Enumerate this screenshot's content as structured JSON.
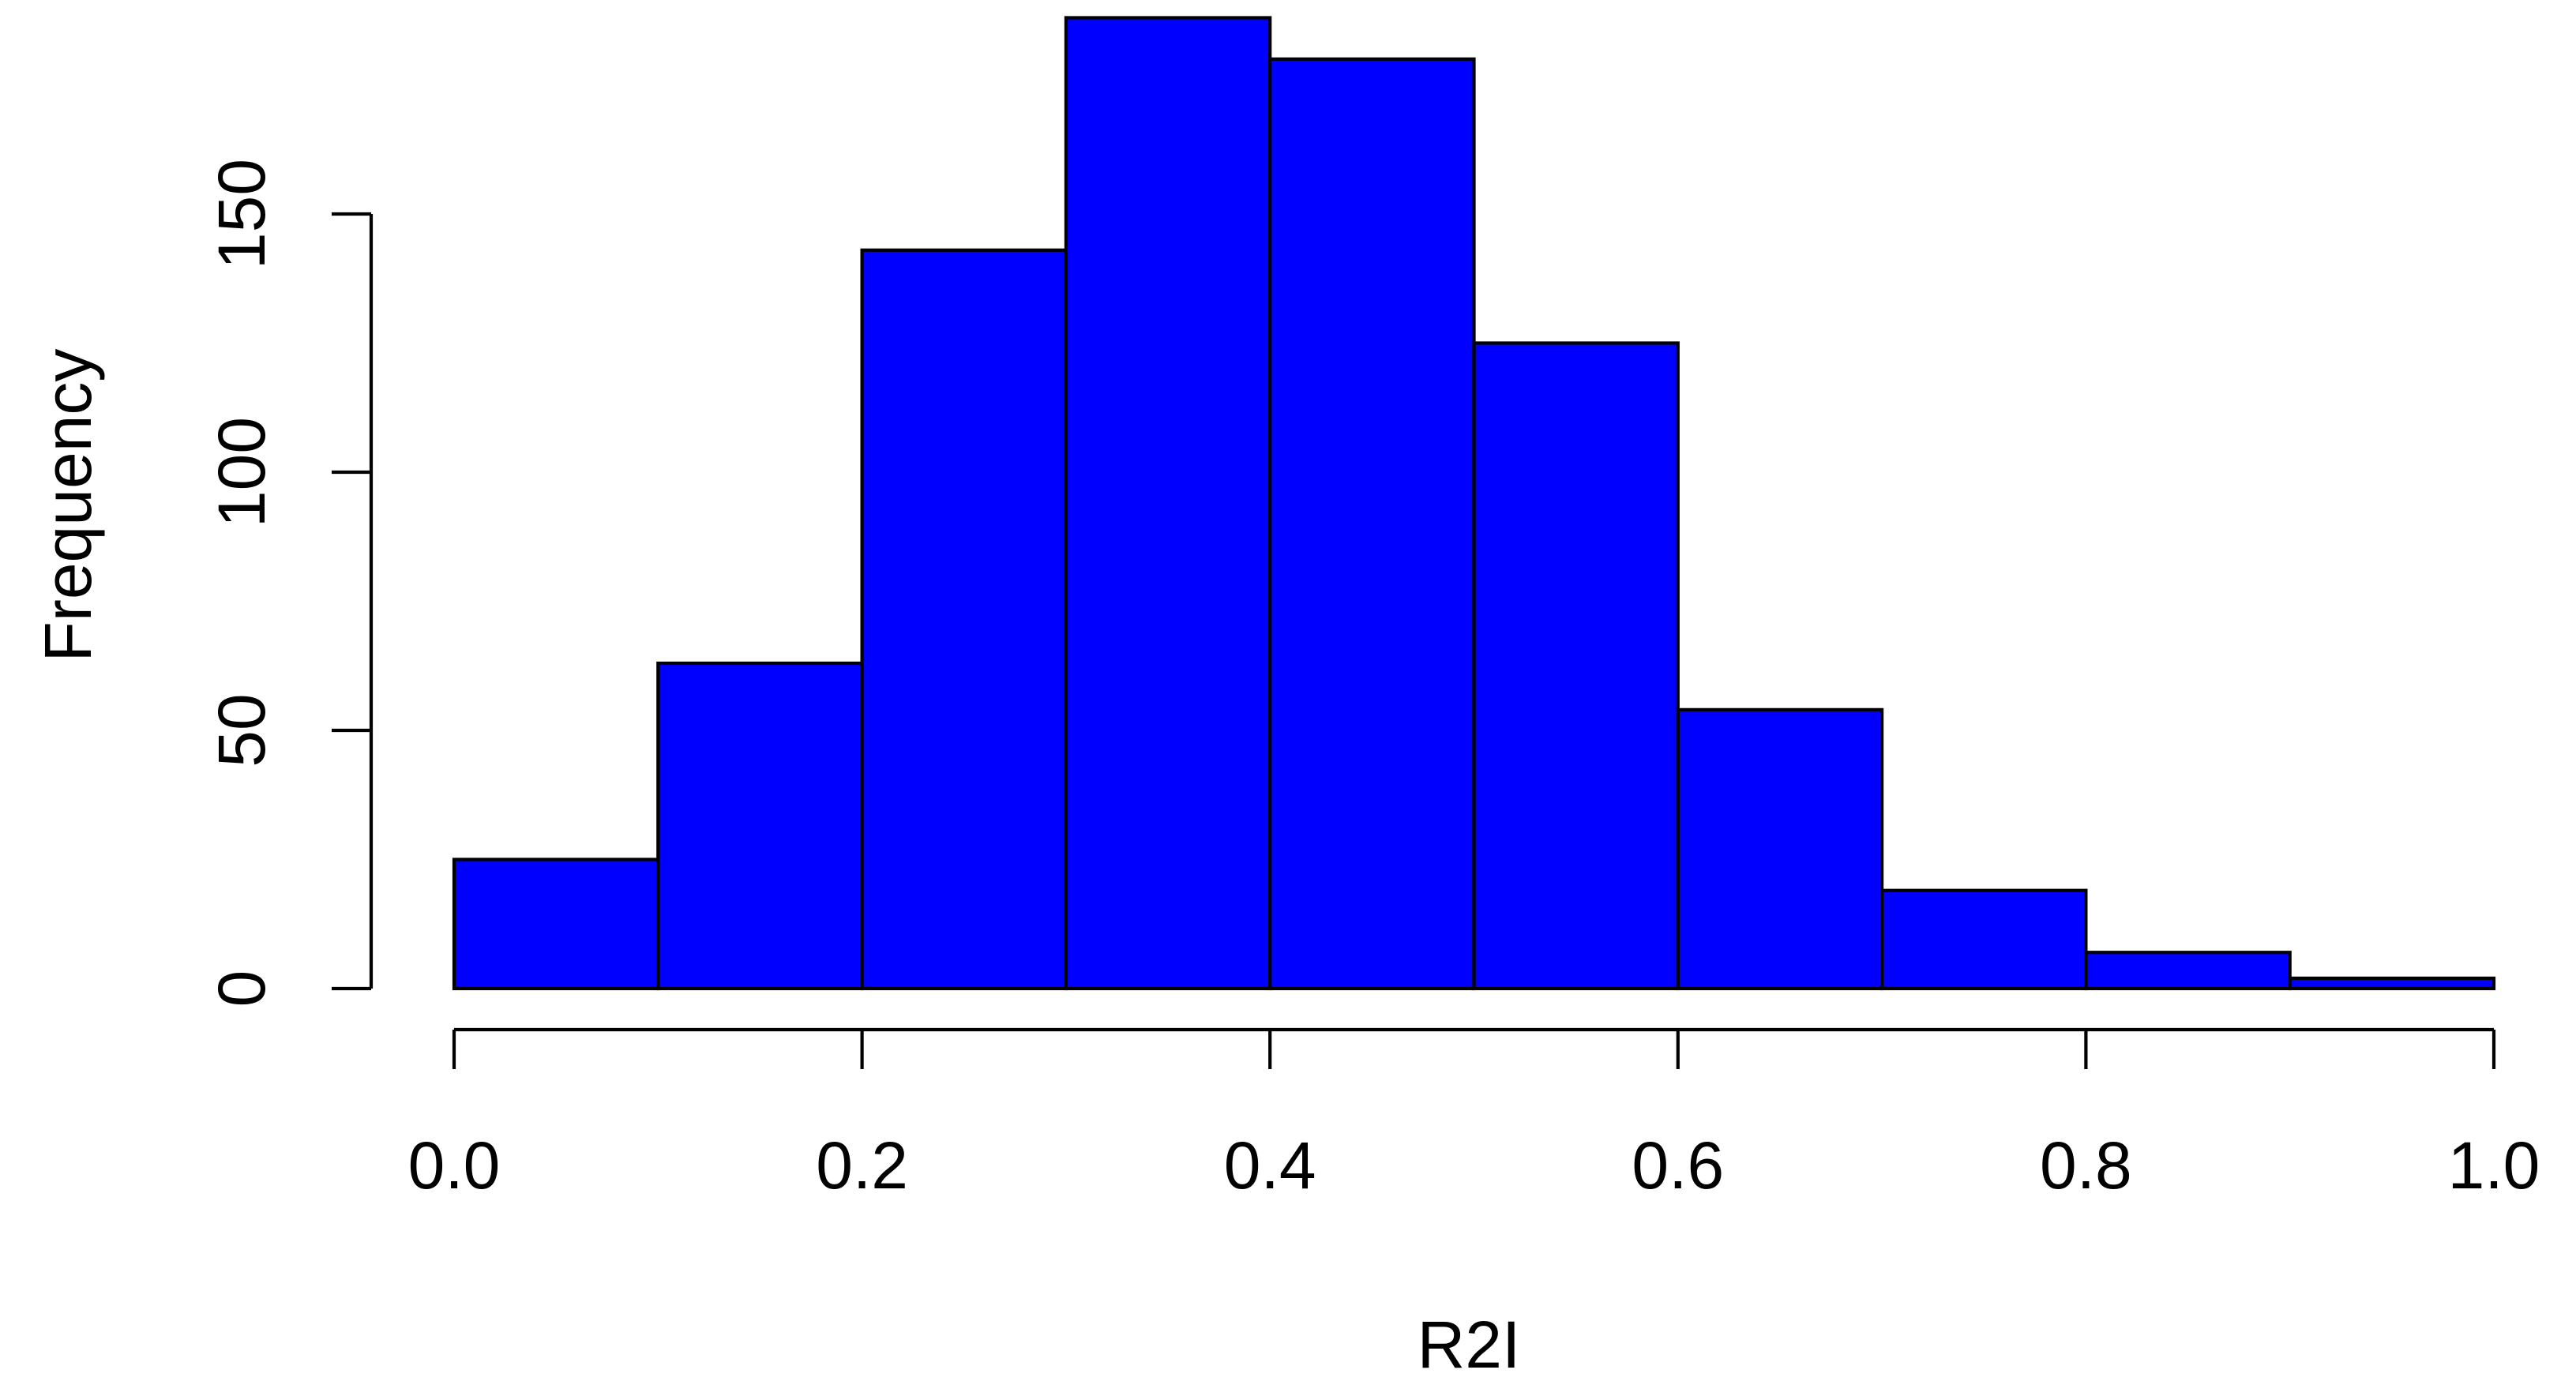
{
  "chart_data": {
    "type": "bar",
    "title": "",
    "xlabel": "R2I",
    "ylabel": "Frequency",
    "bins": [
      {
        "from": 0.0,
        "to": 0.1,
        "count": 25
      },
      {
        "from": 0.1,
        "to": 0.2,
        "count": 63
      },
      {
        "from": 0.2,
        "to": 0.3,
        "count": 143
      },
      {
        "from": 0.3,
        "to": 0.4,
        "count": 188
      },
      {
        "from": 0.4,
        "to": 0.5,
        "count": 180
      },
      {
        "from": 0.5,
        "to": 0.6,
        "count": 125
      },
      {
        "from": 0.6,
        "to": 0.7,
        "count": 54
      },
      {
        "from": 0.7,
        "to": 0.8,
        "count": 19
      },
      {
        "from": 0.8,
        "to": 0.9,
        "count": 7
      },
      {
        "from": 0.9,
        "to": 1.0,
        "count": 2
      }
    ],
    "xlim": [
      0.0,
      1.0
    ],
    "ylim": [
      0,
      188
    ],
    "x_ticks": [
      "0.0",
      "0.2",
      "0.4",
      "0.6",
      "0.8",
      "1.0"
    ],
    "y_ticks": [
      "0",
      "50",
      "100",
      "150"
    ],
    "bar_color": "#0000FF",
    "grid": false,
    "legend": "none"
  }
}
